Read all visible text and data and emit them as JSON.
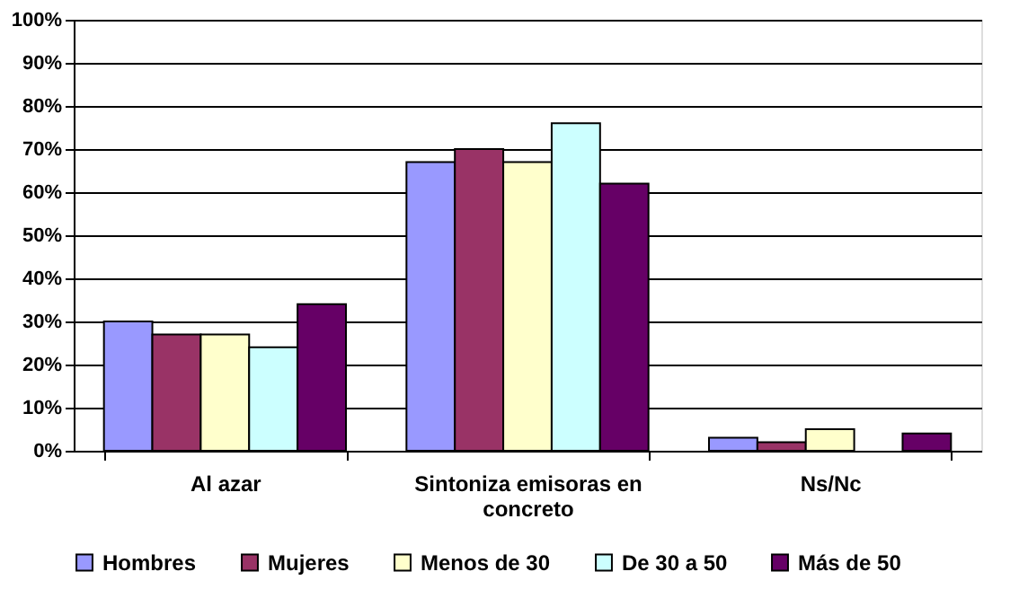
{
  "chart_data": {
    "type": "bar",
    "categories": [
      "Al azar",
      "Sintoniza emisoras en concreto",
      "Ns/Nc"
    ],
    "series": [
      {
        "name": "Hombres",
        "color": "#9999ff",
        "values": [
          30,
          67,
          3
        ]
      },
      {
        "name": "Mujeres",
        "color": "#993366",
        "values": [
          27,
          70,
          2
        ]
      },
      {
        "name": "Menos de 30",
        "color": "#ffffcc",
        "values": [
          27,
          67,
          5
        ]
      },
      {
        "name": "De 30 a 50",
        "color": "#ccffff",
        "values": [
          24,
          76,
          null
        ]
      },
      {
        "name": "Más de 50",
        "color": "#660066",
        "values": [
          34,
          62,
          4
        ]
      }
    ],
    "ylim": [
      0,
      100
    ],
    "yticks": [
      {
        "value": 0,
        "label": "0%"
      },
      {
        "value": 10,
        "label": "10%"
      },
      {
        "value": 20,
        "label": "20%"
      },
      {
        "value": 30,
        "label": "30%"
      },
      {
        "value": 40,
        "label": "40%"
      },
      {
        "value": 50,
        "label": "50%"
      },
      {
        "value": 60,
        "label": "60%"
      },
      {
        "value": 70,
        "label": "70%"
      },
      {
        "value": 80,
        "label": "80%"
      },
      {
        "value": 90,
        "label": "90%"
      },
      {
        "value": 100,
        "label": "100%"
      }
    ],
    "grid": "y",
    "legend": "bottom"
  }
}
